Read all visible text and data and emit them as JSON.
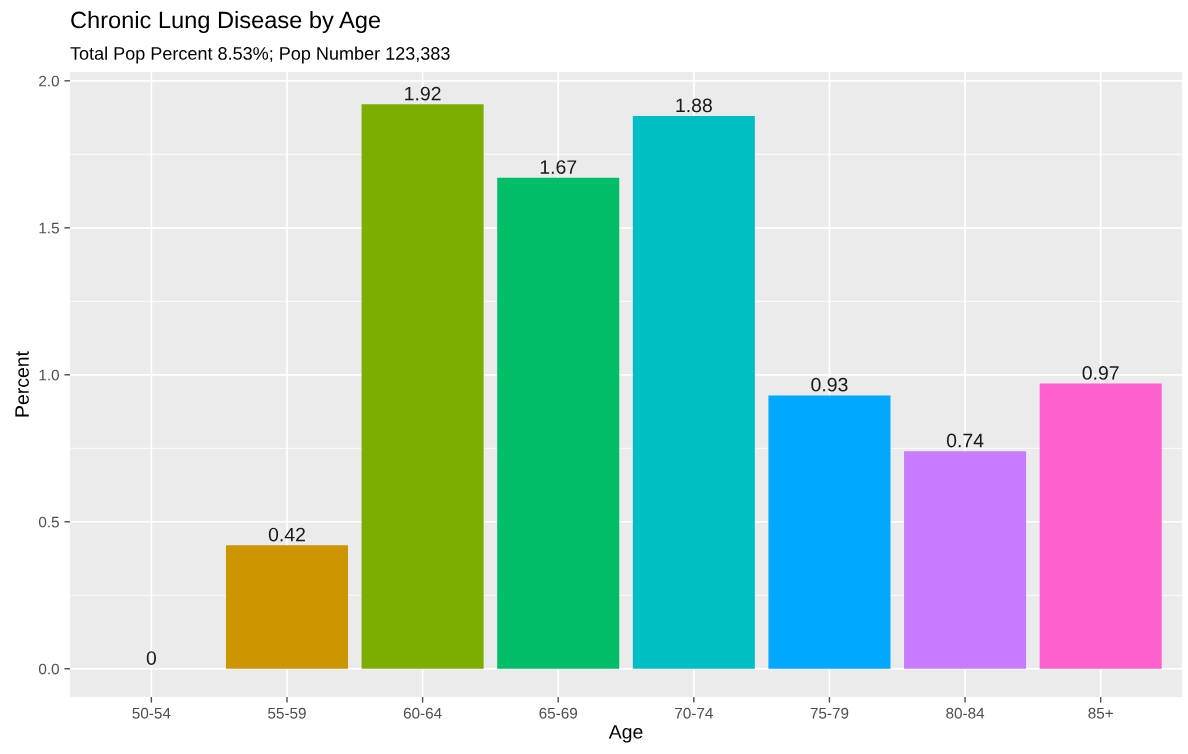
{
  "chart_data": {
    "type": "bar",
    "title": "Chronic Lung Disease by Age",
    "subtitle": "Total Pop Percent 8.53%; Pop Number 123,383",
    "xlabel": "Age",
    "ylabel": "Percent",
    "categories": [
      "50-54",
      "55-59",
      "60-64",
      "65-69",
      "70-74",
      "75-79",
      "80-84",
      "85+"
    ],
    "values": [
      0,
      0.42,
      1.92,
      1.67,
      1.88,
      0.93,
      0.74,
      0.97
    ],
    "colors": [
      "#f8766d",
      "#cd9600",
      "#7cae00",
      "#00be67",
      "#00bfc4",
      "#00a9ff",
      "#c77cff",
      "#ff61cc"
    ],
    "ylim": [
      -0.096,
      2.03
    ],
    "yticks": [
      {
        "value": 0,
        "label": "0.0"
      },
      {
        "value": 0.5,
        "label": "0.5"
      },
      {
        "value": 1.0,
        "label": "1.0"
      },
      {
        "value": 1.5,
        "label": "1.5"
      },
      {
        "value": 2.0,
        "label": "2.0"
      }
    ],
    "grid": true,
    "data_labels": true
  }
}
